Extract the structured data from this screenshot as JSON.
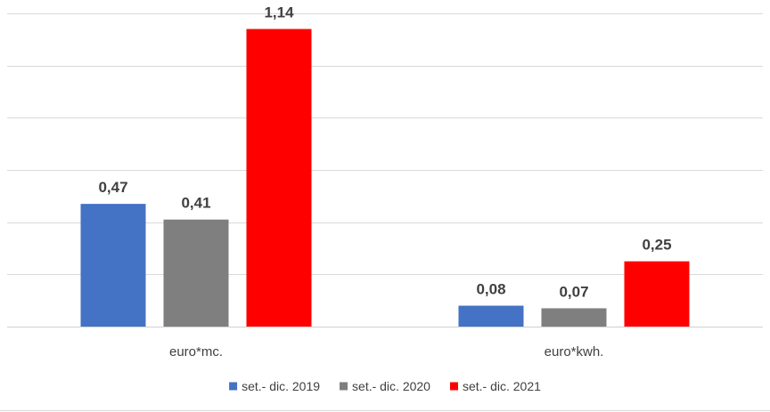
{
  "chart_data": {
    "type": "bar",
    "categories": [
      "euro*mc.",
      "euro*kwh."
    ],
    "series": [
      {
        "name": "set.- dic. 2019",
        "values": [
          0.47,
          0.08
        ],
        "labels": [
          "0,47",
          "0,08"
        ],
        "color": "#4472C4"
      },
      {
        "name": "set.- dic. 2020",
        "values": [
          0.41,
          0.07
        ],
        "labels": [
          "0,41",
          "0,07"
        ],
        "color": "#7F7F7F"
      },
      {
        "name": "set.- dic. 2021",
        "values": [
          1.14,
          0.25
        ],
        "labels": [
          "1,14",
          "0,25"
        ],
        "color": "#FF0000"
      }
    ],
    "ylim": [
      0,
      1.2
    ],
    "grid": true,
    "legend": "bottom"
  }
}
